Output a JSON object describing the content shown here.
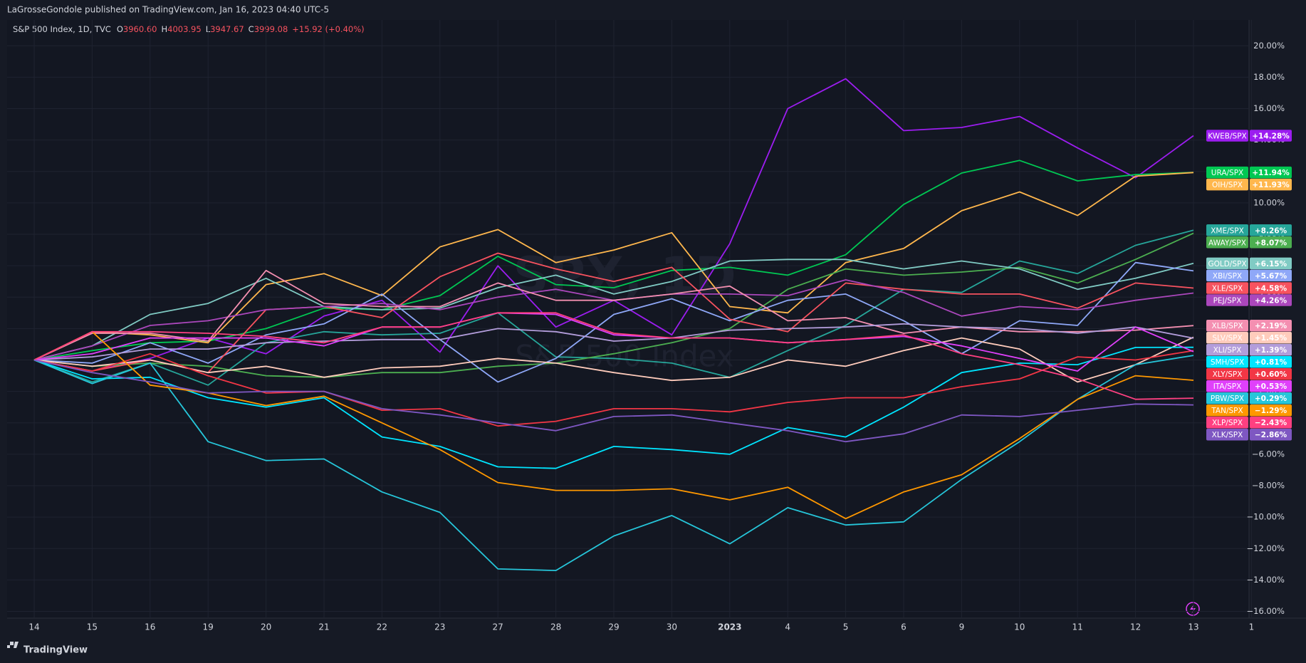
{
  "header": {
    "publisher": "LaGrosseGondole published on TradingView.com, Jan 16, 2023 04:40 UTC-5",
    "symbol": "S&P 500 Index, 1D, TVC",
    "ohlc": [
      {
        "label": "O",
        "value": "3960.60"
      },
      {
        "label": "H",
        "value": "4003.95"
      },
      {
        "label": "L",
        "value": "3947.67"
      },
      {
        "label": "C",
        "value": "3999.08"
      }
    ],
    "change": "+15.92 (+0.40%)"
  },
  "watermark": {
    "symbol": "SPX, 1D",
    "name": "S&P 500 Index"
  },
  "footer": {
    "brand": "TradingView"
  },
  "chart_data": {
    "type": "line",
    "categories": [
      "14",
      "15",
      "16",
      "19",
      "20",
      "21",
      "22",
      "23",
      "27",
      "28",
      "29",
      "30",
      "2023",
      "4",
      "5",
      "6",
      "9",
      "10",
      "11",
      "12",
      "13",
      "1"
    ],
    "ylim": [
      20,
      -16
    ],
    "yticks": [
      {
        "value": 20,
        "label": "20.00%"
      },
      {
        "value": 18,
        "label": "18.00%"
      },
      {
        "value": 16,
        "label": "16.00%"
      },
      {
        "value": 14,
        "label": "14.00%"
      },
      {
        "value": 12,
        "label": "12.00%"
      },
      {
        "value": 10,
        "label": "10.00%"
      },
      {
        "value": 8,
        "label": "8.00%"
      },
      {
        "value": 6,
        "label": "6.00%"
      },
      {
        "value": 4,
        "label": "4.00%"
      },
      {
        "value": 2,
        "label": "2.00%"
      },
      {
        "value": 0,
        "label": "0.00%"
      },
      {
        "value": -2,
        "label": "−2.00%"
      },
      {
        "value": -4,
        "label": "−4.00%"
      },
      {
        "value": -6,
        "label": "−6.00%"
      },
      {
        "value": -8,
        "label": "−8.00%"
      },
      {
        "value": -10,
        "label": "−10.00%"
      },
      {
        "value": -12,
        "label": "−12.00%"
      },
      {
        "value": -14,
        "label": "−14.00%"
      },
      {
        "value": -16,
        "label": "−16.00%"
      }
    ],
    "grid": true,
    "series": [
      {
        "name": "KWEB/SPX",
        "color": "#9c1df0",
        "end_label": "+14.28%",
        "values": [
          0,
          -0.7,
          0.1,
          1.4,
          0.4,
          2.8,
          3.8,
          0.5,
          6.0,
          2.1,
          3.8,
          1.6,
          7.4,
          16.0,
          17.9,
          14.6,
          14.8,
          15.5,
          13.5,
          11.6,
          14.28,
          null
        ]
      },
      {
        "name": "URA/SPX",
        "color": "#00c853",
        "end_label": "+11.94%",
        "values": [
          0,
          0.6,
          1.1,
          1.2,
          2.0,
          3.3,
          3.2,
          4.1,
          6.6,
          4.8,
          4.6,
          5.7,
          5.9,
          5.4,
          6.7,
          9.9,
          11.9,
          12.7,
          11.4,
          11.8,
          11.94,
          null
        ]
      },
      {
        "name": "OIH/SPX",
        "color": "#ffb74d",
        "end_label": "+11.93%",
        "values": [
          0,
          1.8,
          1.6,
          1.1,
          4.8,
          5.5,
          4.1,
          7.2,
          8.3,
          6.2,
          7.0,
          8.1,
          3.4,
          3.0,
          6.2,
          7.1,
          9.5,
          10.7,
          9.2,
          11.7,
          11.93,
          null
        ]
      },
      {
        "name": "XME/SPX",
        "color": "#26a69a",
        "end_label": "+8.26%",
        "values": [
          0,
          -1.4,
          -0.2,
          -1.6,
          1.1,
          1.8,
          1.6,
          1.7,
          3.0,
          0.2,
          0.1,
          -0.2,
          -1.1,
          0.6,
          2.2,
          4.5,
          4.3,
          6.3,
          5.5,
          7.3,
          8.26,
          null
        ]
      },
      {
        "name": "AWAY/SPX",
        "color": "#4caf50",
        "end_label": "+8.07%",
        "values": [
          0,
          -0.4,
          -0.2,
          -0.4,
          -1.0,
          -1.1,
          -0.8,
          -0.8,
          -0.4,
          -0.2,
          0.4,
          1.1,
          2.0,
          4.5,
          5.8,
          5.4,
          5.6,
          5.9,
          4.9,
          6.4,
          8.07,
          null
        ]
      },
      {
        "name": "GOLD/SPX",
        "color": "#80cbc4",
        "end_label": "+6.15%",
        "values": [
          0,
          0.9,
          2.9,
          3.6,
          5.2,
          3.4,
          3.2,
          3.3,
          4.6,
          5.4,
          4.2,
          5.0,
          6.3,
          6.4,
          6.4,
          5.8,
          6.3,
          5.8,
          4.5,
          5.2,
          6.15,
          null
        ]
      },
      {
        "name": "XBI/SPX",
        "color": "#8fa8f8",
        "end_label": "+5.67%",
        "values": [
          0,
          -0.2,
          1.1,
          -0.2,
          1.6,
          2.3,
          4.2,
          1.3,
          -1.4,
          0.1,
          2.9,
          3.9,
          2.5,
          3.8,
          4.2,
          2.5,
          0.4,
          2.5,
          2.2,
          6.2,
          5.67,
          null
        ]
      },
      {
        "name": "XLE/SPX",
        "color": "#f7525f",
        "end_label": "+4.58%",
        "values": [
          0,
          -0.7,
          0,
          -0.8,
          3.2,
          3.4,
          2.7,
          5.3,
          6.8,
          5.8,
          5.0,
          5.9,
          2.6,
          1.8,
          4.9,
          4.5,
          4.2,
          4.2,
          3.3,
          4.9,
          4.58,
          null
        ]
      },
      {
        "name": "PEJ/SPX",
        "color": "#ab47bc",
        "end_label": "+4.26%",
        "values": [
          0,
          0.9,
          2.2,
          2.5,
          3.2,
          3.4,
          3.6,
          3.2,
          4.0,
          4.5,
          3.8,
          4.2,
          4.2,
          4.1,
          5.1,
          4.3,
          2.8,
          3.4,
          3.2,
          3.8,
          4.26,
          null
        ]
      },
      {
        "name": "XLB/SPX",
        "color": "#f48fb1",
        "end_label": "+2.19%",
        "values": [
          0,
          1.7,
          1.7,
          1.2,
          5.7,
          3.6,
          3.4,
          3.4,
          4.9,
          3.8,
          3.8,
          4.2,
          4.7,
          2.5,
          2.7,
          1.7,
          2.1,
          1.8,
          1.8,
          1.9,
          2.19,
          null
        ]
      },
      {
        "name": "SLV/SPX",
        "color": "#ffccbc",
        "end_label": "+1.45%",
        "values": [
          0,
          -0.4,
          0,
          -0.8,
          -0.4,
          -1.1,
          -0.5,
          -0.4,
          0.1,
          -0.2,
          -0.8,
          -1.3,
          -1.1,
          0,
          -0.4,
          0.6,
          1.4,
          0.7,
          -1.4,
          -0.3,
          1.45,
          null
        ]
      },
      {
        "name": "XLI/SPX",
        "color": "#b39ddb",
        "end_label": "+1.39%",
        "values": [
          0,
          0.2,
          0.7,
          0.7,
          1.1,
          1.2,
          1.3,
          1.3,
          2.0,
          1.8,
          1.2,
          1.4,
          1.9,
          2.0,
          2.1,
          2.3,
          2.1,
          2.0,
          1.7,
          2.1,
          1.39,
          null
        ]
      },
      {
        "name": "SMH/SPX",
        "color": "#00e5ff",
        "end_label": "+0.81%",
        "values": [
          0,
          -1.2,
          -1.1,
          -2.4,
          -3.0,
          -2.4,
          -4.9,
          -5.5,
          -6.8,
          -6.9,
          -5.5,
          -5.7,
          -6.0,
          -4.3,
          -4.9,
          -3.0,
          -0.8,
          -0.2,
          -0.3,
          0.8,
          0.81,
          null
        ]
      },
      {
        "name": "XLY/SPX",
        "color": "#f23645",
        "end_label": "+0.60%",
        "values": [
          0,
          -0.7,
          0.4,
          -1.0,
          -2.1,
          -2.0,
          -3.2,
          -3.1,
          -4.2,
          -3.9,
          -3.1,
          -3.1,
          -3.3,
          -2.7,
          -2.4,
          -2.4,
          -1.7,
          -1.2,
          0.2,
          0,
          0.6,
          null
        ]
      },
      {
        "name": "ITA/SPX",
        "color": "#e040fb",
        "end_label": "+0.53%",
        "values": [
          0,
          0.4,
          1.4,
          1.4,
          1.4,
          0.9,
          2.1,
          2.1,
          3.0,
          2.9,
          1.6,
          1.4,
          1.4,
          1.1,
          1.3,
          1.5,
          0.9,
          0.1,
          -0.7,
          2.1,
          0.53,
          null
        ]
      },
      {
        "name": "PBW/SPX",
        "color": "#26c6da",
        "end_label": "+0.29%",
        "values": [
          0,
          -1.5,
          -0.2,
          -5.2,
          -6.4,
          -6.3,
          -8.4,
          -9.7,
          -13.3,
          -13.4,
          -11.2,
          -9.9,
          -11.7,
          -9.4,
          -10.5,
          -10.3,
          -7.6,
          -5.2,
          -2.5,
          -0.3,
          0.29,
          null
        ]
      },
      {
        "name": "TAN/SPX",
        "color": "#ff9800",
        "end_label": "−1.29%",
        "values": [
          0,
          1.8,
          -1.6,
          -2.1,
          -2.9,
          -2.3,
          -4.0,
          -5.7,
          -7.8,
          -8.3,
          -8.3,
          -8.2,
          -8.9,
          -8.1,
          -10.1,
          -8.4,
          -7.3,
          -5.0,
          -2.5,
          -1.0,
          -1.29,
          null
        ]
      },
      {
        "name": "XLP/SPX",
        "color": "#ff4081",
        "end_label": "−2.43%",
        "values": [
          0,
          1.8,
          1.8,
          1.7,
          1.5,
          1.1,
          2.1,
          2.1,
          3.0,
          3.0,
          1.7,
          1.4,
          1.4,
          1.1,
          1.3,
          1.6,
          0.4,
          -0.3,
          -1.2,
          -2.5,
          -2.43,
          null
        ]
      },
      {
        "name": "XLK/SPX",
        "color": "#7e57c2",
        "end_label": "−2.86%",
        "values": [
          0,
          -0.8,
          -1.4,
          -2.1,
          -2.0,
          -2.0,
          -3.1,
          -3.5,
          -4.0,
          -4.5,
          -3.6,
          -3.5,
          -4.0,
          -4.5,
          -5.2,
          -4.7,
          -3.5,
          -3.6,
          -3.2,
          -2.8,
          -2.86,
          null
        ]
      }
    ]
  }
}
